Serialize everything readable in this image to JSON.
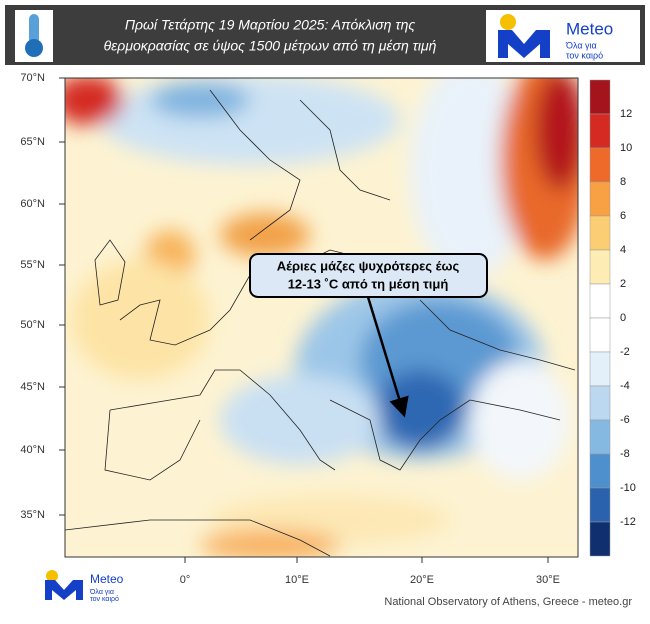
{
  "header": {
    "title_lines": [
      "Πρωί Τετάρτης 19 Μαρτίου 2025: Απόκλιση της",
      "θερμοκρασίας σε ύψος 1500 μέτρων από τη μέση τιμή"
    ]
  },
  "logo": {
    "name": "Meteo",
    "tagline_lines": [
      "Όλα για",
      "τον καιρό"
    ]
  },
  "map": {
    "lat_labels": [
      "70°N",
      "65°N",
      "60°N",
      "55°N",
      "50°N",
      "45°N",
      "40°N",
      "35°N"
    ],
    "lon_labels": [
      "0°",
      "10°E",
      "20°E",
      "30°E"
    ],
    "callout_lines": [
      "Αέριες μάζες ψυχρότερες έως",
      "12-13 ˚C από τη μέση τιμή"
    ],
    "credit": "National Observatory of Athens, Greece - meteo.gr"
  },
  "colorbar": {
    "labels": [
      12,
      10,
      8,
      6,
      4,
      2,
      0,
      -2,
      -4,
      -6,
      -8,
      -10,
      -12
    ],
    "colors": [
      "#a3141c",
      "#d42a22",
      "#ee6a2b",
      "#f7a044",
      "#fcce74",
      "#fdedb4",
      "#ffffff",
      "#ffffff",
      "#e3eff9",
      "#bcd8f0",
      "#86b9e2",
      "#4e8fce",
      "#2a62ad",
      "#102f6e"
    ]
  }
}
